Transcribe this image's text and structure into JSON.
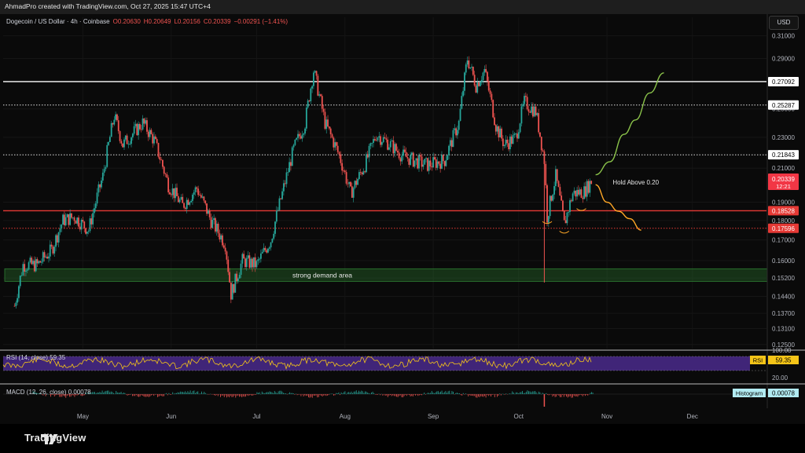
{
  "header": {
    "creator_line": "AhmadPro created with TradingView.com, Oct 27, 2025 15:47 UTC+4"
  },
  "currency_label": "USD",
  "legend": {
    "symbol": "Dogecoin / US Dollar · 4h · Coinbase",
    "open": "O0.20630",
    "high": "H0.20649",
    "low": "L0.20156",
    "close": "C0.20339",
    "change": "−0.00291 (−1.41%)"
  },
  "branding": {
    "logo_text": "TradingView"
  },
  "colors": {
    "background": "#0a0a0a",
    "up_candle": "#26a69a",
    "down_candle": "#ef5350",
    "white_level": "#ffffff",
    "red_level": "#e53935",
    "demand_zone": "#2e7d32",
    "bull_path": "#8bc34a",
    "bear_path": "#ffa726",
    "rsi_band": "#4a2a8c",
    "rsi_line": "#f5c518",
    "price_tag": "#f23645"
  },
  "chart_data": {
    "type": "candlestick",
    "title": "Dogecoin / US Dollar · 4h · Coinbase",
    "xlabel": "",
    "ylabel": "",
    "y_scale": "log",
    "ylim": [
      0.1235,
      0.3155
    ],
    "y_ticks": [
      "0.31000",
      "0.29000",
      "0.25000",
      "0.23000",
      "0.21000",
      "0.19000",
      "0.18000",
      "0.17000",
      "0.16000",
      "0.15200",
      "0.14400",
      "0.13700",
      "0.13100",
      "0.12500"
    ],
    "x_ticks": [
      "May",
      "Jun",
      "Jul",
      "Aug",
      "Sep",
      "Oct",
      "Nov",
      "Dec"
    ],
    "x_tick_dates": [
      "2025-05-01",
      "2025-06-01",
      "2025-07-01",
      "2025-08-01",
      "2025-09-01",
      "2025-10-01",
      "2025-11-01",
      "2025-12-01"
    ],
    "price_path": [
      {
        "date": "2025-04-07",
        "price": 0.14
      },
      {
        "date": "2025-04-10",
        "price": 0.158
      },
      {
        "date": "2025-04-15",
        "price": 0.158
      },
      {
        "date": "2025-04-20",
        "price": 0.165
      },
      {
        "date": "2025-04-24",
        "price": 0.18
      },
      {
        "date": "2025-04-28",
        "price": 0.182
      },
      {
        "date": "2025-05-03",
        "price": 0.175
      },
      {
        "date": "2025-05-08",
        "price": 0.205
      },
      {
        "date": "2025-05-12",
        "price": 0.245
      },
      {
        "date": "2025-05-15",
        "price": 0.225
      },
      {
        "date": "2025-05-22",
        "price": 0.24
      },
      {
        "date": "2025-05-26",
        "price": 0.228
      },
      {
        "date": "2025-05-31",
        "price": 0.2
      },
      {
        "date": "2025-06-05",
        "price": 0.188
      },
      {
        "date": "2025-06-10",
        "price": 0.198
      },
      {
        "date": "2025-06-15",
        "price": 0.18
      },
      {
        "date": "2025-06-20",
        "price": 0.168
      },
      {
        "date": "2025-06-22",
        "price": 0.145
      },
      {
        "date": "2025-06-26",
        "price": 0.16
      },
      {
        "date": "2025-07-01",
        "price": 0.158
      },
      {
        "date": "2025-07-06",
        "price": 0.17
      },
      {
        "date": "2025-07-10",
        "price": 0.195
      },
      {
        "date": "2025-07-14",
        "price": 0.222
      },
      {
        "date": "2025-07-18",
        "price": 0.24
      },
      {
        "date": "2025-07-21",
        "price": 0.28
      },
      {
        "date": "2025-07-25",
        "price": 0.24
      },
      {
        "date": "2025-07-30",
        "price": 0.218
      },
      {
        "date": "2025-08-03",
        "price": 0.195
      },
      {
        "date": "2025-08-08",
        "price": 0.212
      },
      {
        "date": "2025-08-12",
        "price": 0.232
      },
      {
        "date": "2025-08-17",
        "price": 0.225
      },
      {
        "date": "2025-08-21",
        "price": 0.218
      },
      {
        "date": "2025-08-25",
        "price": 0.215
      },
      {
        "date": "2025-08-30",
        "price": 0.212
      },
      {
        "date": "2025-09-05",
        "price": 0.215
      },
      {
        "date": "2025-09-10",
        "price": 0.24
      },
      {
        "date": "2025-09-13",
        "price": 0.29
      },
      {
        "date": "2025-09-16",
        "price": 0.268
      },
      {
        "date": "2025-09-19",
        "price": 0.28
      },
      {
        "date": "2025-09-23",
        "price": 0.238
      },
      {
        "date": "2025-09-26",
        "price": 0.225
      },
      {
        "date": "2025-09-30",
        "price": 0.23
      },
      {
        "date": "2025-10-03",
        "price": 0.255
      },
      {
        "date": "2025-10-07",
        "price": 0.248
      },
      {
        "date": "2025-10-10",
        "price": 0.215
      },
      {
        "date": "2025-10-11",
        "price": 0.182
      },
      {
        "date": "2025-10-14",
        "price": 0.205
      },
      {
        "date": "2025-10-17",
        "price": 0.178
      },
      {
        "date": "2025-10-20",
        "price": 0.195
      },
      {
        "date": "2025-10-24",
        "price": 0.196
      },
      {
        "date": "2025-10-27",
        "price": 0.2034
      }
    ],
    "flash_wick": {
      "date": "2025-10-10",
      "high": 0.215,
      "low": 0.15
    },
    "horizontal_levels": [
      {
        "price": 0.27092,
        "label": "0.27092",
        "style": "solid",
        "color": "#ffffff"
      },
      {
        "price": 0.25287,
        "label": "0.25287",
        "style": "dotted",
        "color": "#ffffff"
      },
      {
        "price": 0.21843,
        "label": "0.21843",
        "style": "dotted",
        "color": "#ffffff"
      },
      {
        "price": 0.18528,
        "label": "0.18528",
        "style": "solid",
        "color": "#e53935"
      },
      {
        "price": 0.17596,
        "label": "0.17596",
        "style": "dotted",
        "color": "#e53935"
      }
    ],
    "last_price": {
      "label": "0.20339",
      "countdown": "12:21",
      "price": 0.20339
    },
    "demand_zone": {
      "from": 0.1505,
      "to": 0.1562,
      "label": "strong demand area"
    },
    "annotations": [
      {
        "text": "Hold Above 0.20",
        "date": "2025-11-03",
        "price": 0.2015
      }
    ],
    "projection_bull": [
      {
        "date": "2025-10-28",
        "price": 0.206
      },
      {
        "date": "2025-11-02",
        "price": 0.214
      },
      {
        "date": "2025-11-07",
        "price": 0.232
      },
      {
        "date": "2025-11-11",
        "price": 0.242
      },
      {
        "date": "2025-11-16",
        "price": 0.262
      },
      {
        "date": "2025-11-21",
        "price": 0.278
      }
    ],
    "projection_bear": [
      {
        "date": "2025-10-28",
        "price": 0.2
      },
      {
        "date": "2025-11-01",
        "price": 0.19
      },
      {
        "date": "2025-11-05",
        "price": 0.185
      },
      {
        "date": "2025-11-09",
        "price": 0.181
      },
      {
        "date": "2025-11-13",
        "price": 0.175
      }
    ],
    "rsi": {
      "label": "RSI (14, close) 59.35",
      "value_tag": "RSI",
      "value": "59.35",
      "ticks": [
        "100.00",
        "20.00"
      ]
    },
    "macd": {
      "label": "MACD (12, 26, close) 0.00078",
      "value_tag": "Histogram",
      "value": "0.00078"
    }
  }
}
